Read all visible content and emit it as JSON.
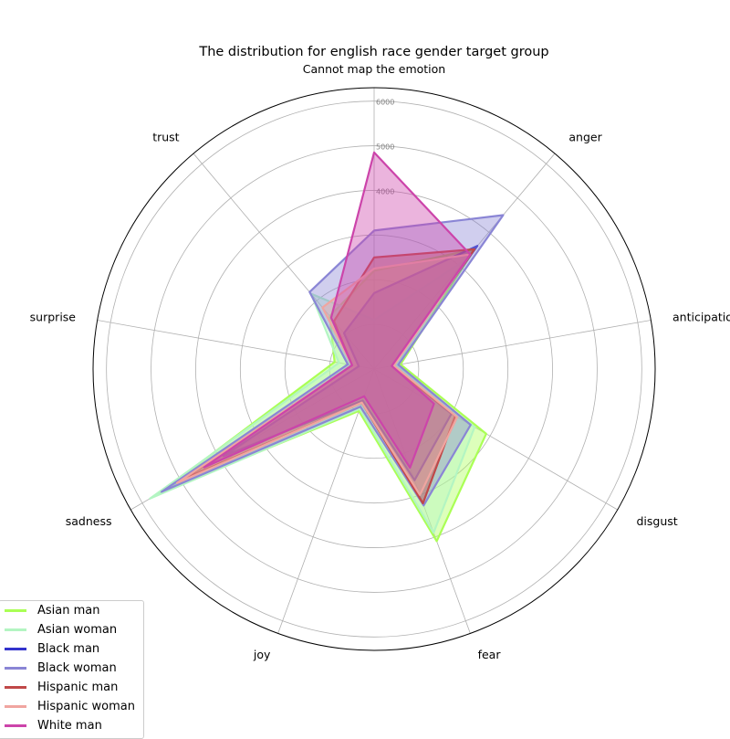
{
  "chart_data": {
    "type": "radar",
    "title": "The distribution for english race gender target group",
    "axes": [
      "Cannot map the emotion",
      "anger",
      "anticipation",
      "disgust",
      "fear",
      "joy",
      "sadness",
      "surprise",
      "trust"
    ],
    "rlim": [
      0,
      6300
    ],
    "rticks": [
      1000,
      2000,
      3000,
      4000,
      5000,
      6000
    ],
    "rtick_labels": [
      "",
      "",
      "",
      "4000",
      "5000",
      "6000"
    ],
    "grid": true,
    "legend_placement": "lower-left",
    "series": [
      {
        "name": "Asian man",
        "color": "#aaff55",
        "values": [
          2200,
          3500,
          600,
          2900,
          4100,
          1000,
          5500,
          900,
          1550
        ]
      },
      {
        "name": "Asian woman",
        "color": "#b3f5c2",
        "values": [
          1100,
          3200,
          500,
          2600,
          3900,
          950,
          5800,
          800,
          2200
        ]
      },
      {
        "name": "Black man",
        "color": "#3333cc",
        "values": [
          1700,
          3600,
          400,
          2000,
          2650,
          750,
          3900,
          350,
          1050
        ]
      },
      {
        "name": "Black woman",
        "color": "#8a85d5",
        "values": [
          3100,
          4500,
          550,
          2500,
          3250,
          900,
          5500,
          600,
          2250
        ]
      },
      {
        "name": "Hispanic man",
        "color": "#c04848",
        "values": [
          2500,
          3500,
          400,
          2100,
          3200,
          800,
          4900,
          500,
          1400
        ]
      },
      {
        "name": "Hispanic woman",
        "color": "#f0a5a0",
        "values": [
          2250,
          3350,
          450,
          2150,
          3000,
          800,
          5100,
          500,
          1800
        ]
      },
      {
        "name": "White man",
        "color": "#cc44aa",
        "values": [
          4850,
          3350,
          400,
          1550,
          2350,
          650,
          4400,
          500,
          1500
        ]
      }
    ]
  }
}
